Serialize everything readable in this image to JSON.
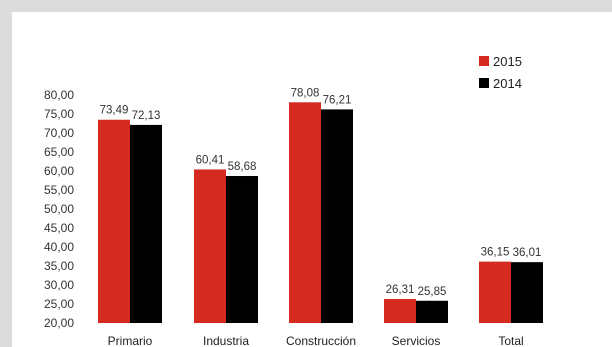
{
  "chart_data": {
    "type": "bar",
    "categories": [
      "Primario",
      "Industria",
      "Construcción",
      "Servicios",
      "Total"
    ],
    "series": [
      {
        "name": "2015",
        "color": "#d42a20",
        "values": [
          73.49,
          60.41,
          78.08,
          26.31,
          36.15
        ],
        "labels": [
          "73,49",
          "60,41",
          "78,08",
          "26,31",
          "36,15"
        ]
      },
      {
        "name": "2014",
        "color": "#000000",
        "values": [
          72.13,
          58.68,
          76.21,
          25.85,
          36.01
        ],
        "labels": [
          "72,13",
          "58,68",
          "76,21",
          "25,85",
          "36,01"
        ]
      }
    ],
    "ylim": [
      20,
      80
    ],
    "yticks": [
      "20,00",
      "25,00",
      "30,00",
      "35,00",
      "40,00",
      "45,00",
      "50,00",
      "55,00",
      "60,00",
      "65,00",
      "70,00",
      "75,00",
      "80,00"
    ],
    "legend_position": "top-right",
    "title": "",
    "xlabel": "",
    "ylabel": ""
  }
}
